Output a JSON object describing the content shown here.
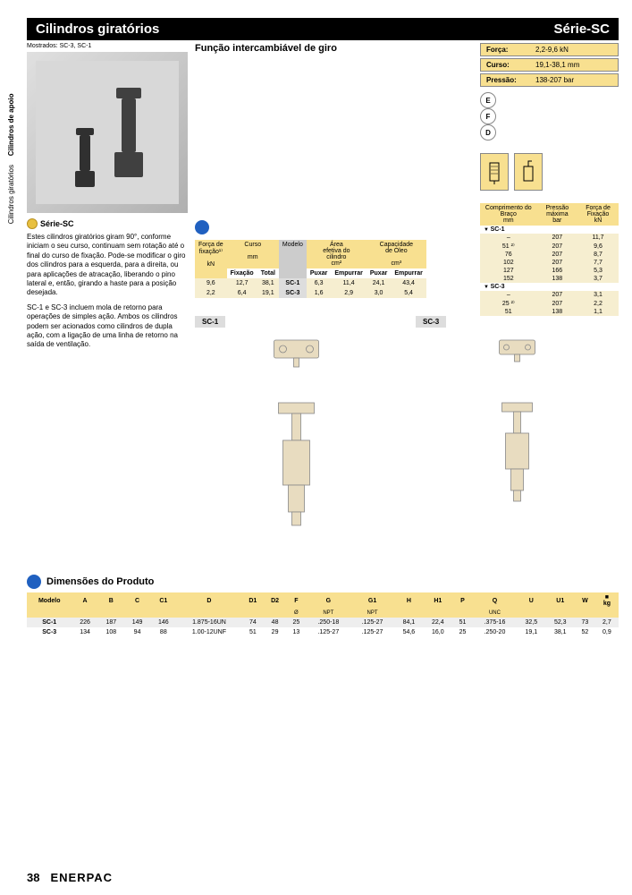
{
  "sideTabs": [
    "Cilindros giratórios",
    "Cilindros de apoio"
  ],
  "header": {
    "left": "Cilindros giratórios",
    "right": "Série-SC"
  },
  "shown": "Mostrados: SC-3, SC-1",
  "seriesLabel": "Série-SC",
  "description1": "Estes cilindros giratórios giram 90°, conforme iniciam o seu curso, continuam sem rotação até o final do curso de fixação. Pode-se modificar o giro dos cilindros para a esquerda, para a direita, ou para aplicações de atracação, liberando o pino lateral e, então, girando a haste para a posição desejada.",
  "description2": "SC-1 e SC-3 incluem mola de retorno para operações de simples ação. Ambos os cilindros podem ser acionados como cilindros de dupla ação, com a ligação de uma linha de retorno na saída de ventilação.",
  "sectionTitle": "Função intercambiável de giro",
  "specs": [
    {
      "label": "Força:",
      "value": "2,2-9,6 kN"
    },
    {
      "label": "Curso:",
      "value": "19,1-38,1 mm"
    },
    {
      "label": "Pressão:",
      "value": "138-207 bar"
    }
  ],
  "badgeLetters": [
    "E",
    "F",
    "D"
  ],
  "mainTable": {
    "colHeaders": [
      {
        "t1": "Força de",
        "t2": "fixação¹⁾",
        "unit": "kN"
      },
      {
        "t1": "Curso",
        "t2": "",
        "unit": "mm"
      },
      {
        "t1": "",
        "t2": "",
        "subs": [
          "Fixação",
          "Total"
        ]
      },
      {
        "t1": "Modelo",
        "t2": ""
      },
      {
        "t1": "Área",
        "t2": "efetiva do cilindro",
        "unit": "cm²",
        "subs": [
          "Puxar",
          "Empurrar"
        ]
      },
      {
        "t1": "Capacidade",
        "t2": "de Óleo",
        "unit": "cm³",
        "subs": [
          "Puxar",
          "Empurrar"
        ]
      }
    ],
    "rows": [
      {
        "force": "9,6",
        "fix": "12,7",
        "total": "38,1",
        "model": "SC-1",
        "aPull": "6,3",
        "aPush": "11,4",
        "oPull": "24,1",
        "oPush": "43,4"
      },
      {
        "force": "2,2",
        "fix": "6,4",
        "total": "19,1",
        "model": "SC-3",
        "aPull": "1,6",
        "aPush": "2,9",
        "oPull": "3,0",
        "oPush": "5,4"
      }
    ]
  },
  "armTable": {
    "headers": [
      {
        "t": "Comprimento do Braço",
        "u": "mm"
      },
      {
        "t": "Pressão máxima",
        "u": "bar"
      },
      {
        "t": "Força de Fixação",
        "u": "kN"
      }
    ],
    "groups": [
      {
        "name": "SC-1",
        "rows": [
          {
            "a": "–",
            "p": "207",
            "f": "11,7"
          },
          {
            "a": "51 ²⁾",
            "p": "207",
            "f": "9,6"
          },
          {
            "a": "76",
            "p": "207",
            "f": "8,7"
          },
          {
            "a": "102",
            "p": "207",
            "f": "7,7"
          },
          {
            "a": "127",
            "p": "166",
            "f": "5,3"
          },
          {
            "a": "152",
            "p": "138",
            "f": "3,7"
          }
        ]
      },
      {
        "name": "SC-3",
        "rows": [
          {
            "a": "–",
            "p": "207",
            "f": "3,1"
          },
          {
            "a": "25 ²⁾",
            "p": "207",
            "f": "2,2"
          },
          {
            "a": "51",
            "p": "138",
            "f": "1,1"
          }
        ]
      }
    ]
  },
  "diagramLabels": [
    "SC-1",
    "SC-3"
  ],
  "dimSectionTitle": "Dimensões do Produto",
  "dimTable": {
    "headers": [
      "Modelo",
      "A",
      "B",
      "C",
      "C1",
      "D",
      "D1",
      "D2",
      "F",
      "G",
      "G1",
      "H",
      "H1",
      "P",
      "Q",
      "U",
      "U1",
      "W",
      "kg"
    ],
    "subheaders": [
      "",
      "",
      "",
      "",
      "",
      "",
      "",
      "",
      "Ø",
      "NPT",
      "NPT",
      "",
      "",
      "",
      "UNC",
      "",
      "",
      "",
      ""
    ],
    "rows": [
      [
        "SC-1",
        "226",
        "187",
        "149",
        "146",
        "1.875-16UN",
        "74",
        "48",
        "25",
        ".250-18",
        ".125-27",
        "84,1",
        "22,4",
        "51",
        ".375-16",
        "32,5",
        "52,3",
        "73",
        "2,7"
      ],
      [
        "SC-3",
        "134",
        "108",
        "94",
        "88",
        "1.00-12UNF",
        "51",
        "29",
        "13",
        ".125-27",
        ".125-27",
        "54,6",
        "16,0",
        "25",
        ".250-20",
        "19,1",
        "38,1",
        "52",
        "0,9"
      ]
    ]
  },
  "pageNum": "38",
  "brand": "ENERPAC"
}
